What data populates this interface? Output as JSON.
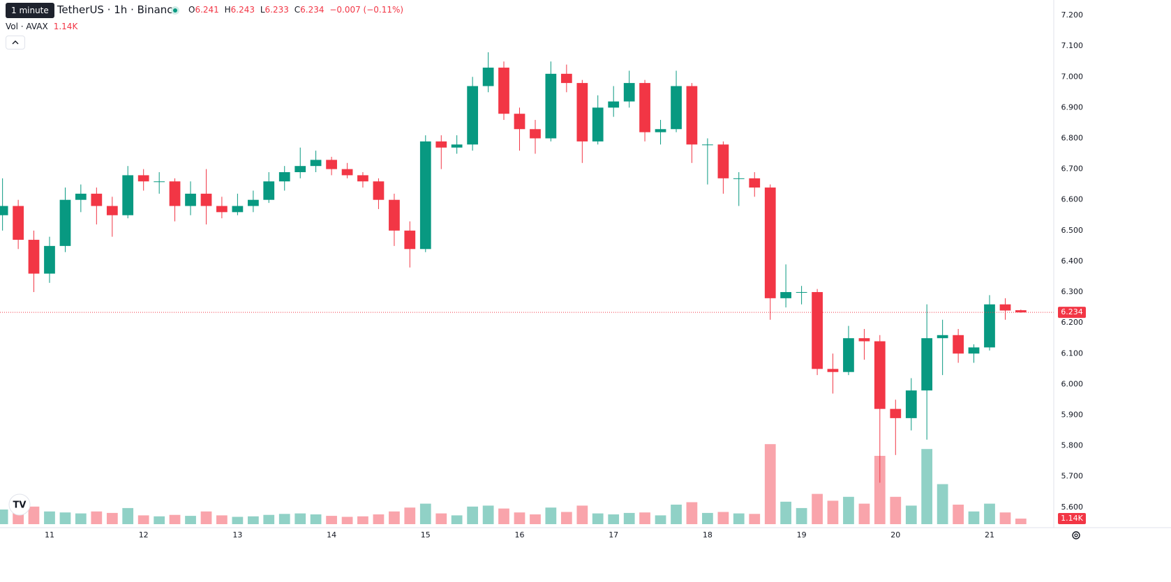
{
  "header": {
    "tooltip": "1 minute",
    "title": "/ TetherUS · 1h · Binance",
    "ohlc_labels": [
      "O",
      "H",
      "L",
      "C"
    ],
    "ohlc": [
      6.241,
      6.243,
      6.233,
      6.234
    ],
    "change": "−0.007 (−0.11%)",
    "volume_title": "Vol · AVAX",
    "volume_label": "1.14K"
  },
  "chart_data": {
    "type": "candlestick",
    "x": [
      10.5,
      10.667,
      10.833,
      11,
      11.167,
      11.333,
      11.5,
      11.667,
      11.833,
      12,
      12.167,
      12.333,
      12.5,
      12.667,
      12.833,
      13,
      13.167,
      13.333,
      13.5,
      13.667,
      13.833,
      14,
      14.167,
      14.333,
      14.5,
      14.667,
      14.833,
      15,
      15.167,
      15.333,
      15.5,
      15.667,
      15.833,
      16,
      16.167,
      16.333,
      16.5,
      16.667,
      16.833,
      17,
      17.167,
      17.333,
      17.5,
      17.667,
      17.833,
      18,
      18.167,
      18.333,
      18.5,
      18.667,
      18.833,
      19,
      19.167,
      19.333,
      19.5,
      19.667,
      19.833,
      20,
      20.167,
      20.333,
      20.5,
      20.667,
      20.833,
      21,
      21.167,
      21.333
    ],
    "open": [
      6.55,
      6.58,
      6.47,
      6.36,
      6.45,
      6.6,
      6.62,
      6.58,
      6.55,
      6.68,
      6.66,
      6.66,
      6.58,
      6.62,
      6.58,
      6.56,
      6.58,
      6.6,
      6.66,
      6.69,
      6.71,
      6.73,
      6.7,
      6.68,
      6.66,
      6.6,
      6.5,
      6.44,
      6.79,
      6.77,
      6.78,
      6.97,
      7.03,
      6.88,
      6.83,
      6.8,
      7.01,
      6.98,
      6.79,
      6.9,
      6.92,
      6.98,
      6.82,
      6.83,
      6.97,
      6.78,
      6.78,
      6.67,
      6.67,
      6.64,
      6.28,
      6.3,
      6.3,
      6.05,
      6.04,
      6.15,
      6.14,
      5.92,
      5.89,
      5.98,
      6.15,
      6.16,
      6.1,
      6.12,
      6.26,
      6.241
    ],
    "high": [
      6.67,
      6.6,
      6.5,
      6.48,
      6.64,
      6.65,
      6.64,
      6.61,
      6.71,
      6.7,
      6.69,
      6.67,
      6.66,
      6.7,
      6.61,
      6.62,
      6.63,
      6.69,
      6.71,
      6.77,
      6.76,
      6.74,
      6.72,
      6.69,
      6.67,
      6.62,
      6.53,
      6.81,
      6.81,
      6.81,
      7.0,
      7.08,
      7.05,
      6.9,
      6.86,
      7.05,
      7.04,
      6.99,
      6.94,
      6.97,
      7.02,
      6.99,
      6.86,
      7.02,
      6.98,
      6.8,
      6.79,
      6.69,
      6.69,
      6.65,
      6.39,
      6.32,
      6.31,
      6.1,
      6.19,
      6.18,
      6.16,
      5.95,
      6.02,
      6.26,
      6.21,
      6.18,
      6.13,
      6.29,
      6.28,
      6.243
    ],
    "low": [
      6.5,
      6.44,
      6.3,
      6.33,
      6.43,
      6.56,
      6.52,
      6.48,
      6.54,
      6.63,
      6.62,
      6.53,
      6.55,
      6.52,
      6.54,
      6.55,
      6.56,
      6.59,
      6.63,
      6.67,
      6.69,
      6.68,
      6.67,
      6.64,
      6.57,
      6.45,
      6.38,
      6.43,
      6.7,
      6.75,
      6.76,
      6.95,
      6.86,
      6.76,
      6.75,
      6.79,
      6.95,
      6.72,
      6.78,
      6.87,
      6.9,
      6.79,
      6.78,
      6.82,
      6.72,
      6.65,
      6.62,
      6.58,
      6.61,
      6.21,
      6.25,
      6.26,
      6.03,
      5.97,
      6.03,
      6.08,
      5.68,
      5.77,
      5.85,
      5.82,
      6.03,
      6.07,
      6.07,
      6.11,
      6.21,
      6.233
    ],
    "close": [
      6.58,
      6.47,
      6.36,
      6.45,
      6.6,
      6.62,
      6.58,
      6.55,
      6.68,
      6.66,
      6.66,
      6.58,
      6.62,
      6.58,
      6.56,
      6.58,
      6.6,
      6.66,
      6.69,
      6.71,
      6.73,
      6.7,
      6.68,
      6.66,
      6.6,
      6.5,
      6.44,
      6.79,
      6.77,
      6.78,
      6.97,
      7.03,
      6.88,
      6.83,
      6.8,
      7.01,
      6.98,
      6.79,
      6.9,
      6.92,
      6.98,
      6.82,
      6.83,
      6.97,
      6.78,
      6.78,
      6.67,
      6.67,
      6.64,
      6.28,
      6.3,
      6.3,
      6.05,
      6.04,
      6.15,
      6.14,
      5.92,
      5.89,
      5.98,
      6.15,
      6.16,
      6.1,
      6.12,
      6.26,
      6.24,
      6.234
    ],
    "volume": [
      3000,
      2800,
      3600,
      2600,
      2400,
      2200,
      2600,
      2300,
      3300,
      1800,
      1600,
      1900,
      1700,
      2600,
      1800,
      1500,
      1600,
      1900,
      2100,
      2200,
      2000,
      1700,
      1500,
      1600,
      2000,
      2600,
      3400,
      4200,
      2200,
      1800,
      3600,
      3800,
      3200,
      2400,
      2000,
      3400,
      2500,
      3800,
      2200,
      2000,
      2300,
      2400,
      1800,
      4000,
      4500,
      2300,
      2500,
      2200,
      2100,
      16400,
      4600,
      3300,
      6200,
      4800,
      5600,
      4200,
      14000,
      5600,
      3800,
      15400,
      8200,
      4000,
      2600,
      4200,
      2400,
      1140
    ],
    "up_color": "#089981",
    "down_color": "#f23645",
    "xlim": [
      10.473,
      21.683
    ],
    "xticks": [
      11,
      12,
      13,
      14,
      15,
      16,
      17,
      18,
      19,
      20,
      21
    ],
    "ylim": [
      5.527,
      7.25
    ],
    "yticks": [
      {
        "value": 5.6,
        "label": "5.600"
      },
      {
        "value": 5.7,
        "label": "5.700"
      },
      {
        "value": 5.8,
        "label": "5.800"
      },
      {
        "value": 5.9,
        "label": "5.900"
      },
      {
        "value": 6.0,
        "label": "6.000"
      },
      {
        "value": 6.1,
        "label": "6.100"
      },
      {
        "value": 6.2,
        "label": "6.200"
      },
      {
        "value": 6.3,
        "label": "6.300"
      },
      {
        "value": 6.4,
        "label": "6.400"
      },
      {
        "value": 6.5,
        "label": "6.500"
      },
      {
        "value": 6.6,
        "label": "6.600"
      },
      {
        "value": 6.7,
        "label": "6.700"
      },
      {
        "value": 6.8,
        "label": "6.800"
      },
      {
        "value": 6.9,
        "label": "6.900"
      },
      {
        "value": 7.0,
        "label": "7.000"
      },
      {
        "value": 7.1,
        "label": "7.100"
      },
      {
        "value": 7.2,
        "label": "7.200"
      }
    ],
    "volume_lim": [
      0,
      30000
    ],
    "last_price": 6.234,
    "grid": true
  }
}
